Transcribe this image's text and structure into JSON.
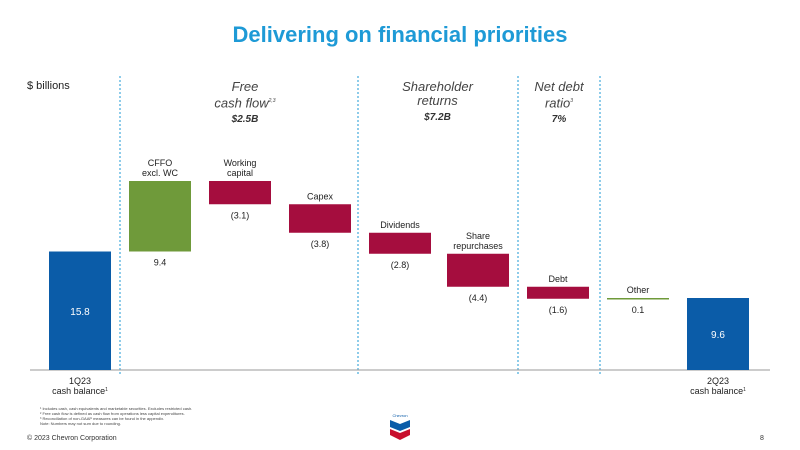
{
  "header": {
    "title": "Delivering on financial priorities"
  },
  "unit_label": "$ billions",
  "sections": [
    {
      "line1": "Free",
      "line2": "cash flow",
      "sup": "2,3",
      "value": "$2.5B"
    },
    {
      "line1": "Shareholder",
      "line2": "returns",
      "sup": "",
      "value": "$7.2B"
    },
    {
      "line1": "Net debt",
      "line2": "ratio",
      "sup": "3",
      "value": "7%"
    }
  ],
  "chart_data": {
    "type": "bar",
    "subtype": "waterfall",
    "unit": "$ billions",
    "ylim": [
      0,
      25.2
    ],
    "categories": [
      {
        "label": "1Q23\ncash balance",
        "sup": "1",
        "value": 15.8,
        "kind": "total",
        "display": "15.8",
        "color": "#0b5ca8"
      },
      {
        "label": "CFFO\nexcl. WC",
        "value": 9.4,
        "kind": "delta",
        "display": "9.4",
        "color": "#6f9a3a"
      },
      {
        "label": "Working\ncapital",
        "value": -3.1,
        "kind": "delta",
        "display": "(3.1)",
        "color": "#a50d3e"
      },
      {
        "label": "Capex",
        "value": -3.8,
        "kind": "delta",
        "display": "(3.8)",
        "color": "#a50d3e"
      },
      {
        "label": "Dividends",
        "value": -2.8,
        "kind": "delta",
        "display": "(2.8)",
        "color": "#a50d3e"
      },
      {
        "label": "Share\nrepurchases",
        "value": -4.4,
        "kind": "delta",
        "display": "(4.4)",
        "color": "#a50d3e"
      },
      {
        "label": "Debt",
        "value": -1.6,
        "kind": "delta",
        "display": "(1.6)",
        "color": "#a50d3e"
      },
      {
        "label": "Other",
        "value": 0.1,
        "kind": "delta",
        "display": "0.1",
        "color": "#6f9a3a"
      },
      {
        "label": "2Q23\ncash balance",
        "sup": "1",
        "value": 9.6,
        "kind": "total",
        "display": "9.6",
        "color": "#0b5ca8"
      }
    ]
  },
  "footnotes": [
    "¹ Includes cash, cash equivalents and marketable securities. Excludes restricted cash.",
    "² Free cash flow is defined as cash flow from operations less capital expenditures.",
    "³ Reconciliation of non-GAAP measures can be found in the appendix.",
    "Note: Numbers may not sum due to rounding."
  ],
  "logo_text": "Chevron",
  "copyright": "© 2023 Chevron Corporation",
  "page_number": "8"
}
